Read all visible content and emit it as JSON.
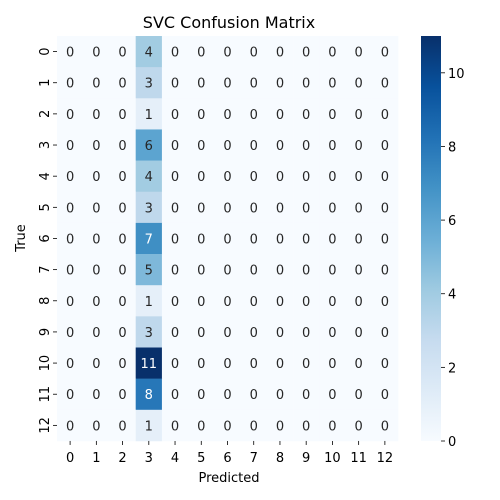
{
  "chart_data": {
    "type": "heatmap",
    "title": "SVC Confusion Matrix",
    "xlabel": "Predicted",
    "ylabel": "True",
    "x_categories": [
      "0",
      "1",
      "2",
      "3",
      "4",
      "5",
      "6",
      "7",
      "8",
      "9",
      "10",
      "11",
      "12"
    ],
    "y_categories": [
      "0",
      "1",
      "2",
      "3",
      "4",
      "5",
      "6",
      "7",
      "8",
      "9",
      "10",
      "11",
      "12"
    ],
    "values": [
      [
        0,
        0,
        0,
        4,
        0,
        0,
        0,
        0,
        0,
        0,
        0,
        0,
        0
      ],
      [
        0,
        0,
        0,
        3,
        0,
        0,
        0,
        0,
        0,
        0,
        0,
        0,
        0
      ],
      [
        0,
        0,
        0,
        1,
        0,
        0,
        0,
        0,
        0,
        0,
        0,
        0,
        0
      ],
      [
        0,
        0,
        0,
        6,
        0,
        0,
        0,
        0,
        0,
        0,
        0,
        0,
        0
      ],
      [
        0,
        0,
        0,
        4,
        0,
        0,
        0,
        0,
        0,
        0,
        0,
        0,
        0
      ],
      [
        0,
        0,
        0,
        3,
        0,
        0,
        0,
        0,
        0,
        0,
        0,
        0,
        0
      ],
      [
        0,
        0,
        0,
        7,
        0,
        0,
        0,
        0,
        0,
        0,
        0,
        0,
        0
      ],
      [
        0,
        0,
        0,
        5,
        0,
        0,
        0,
        0,
        0,
        0,
        0,
        0,
        0
      ],
      [
        0,
        0,
        0,
        1,
        0,
        0,
        0,
        0,
        0,
        0,
        0,
        0,
        0
      ],
      [
        0,
        0,
        0,
        3,
        0,
        0,
        0,
        0,
        0,
        0,
        0,
        0,
        0
      ],
      [
        0,
        0,
        0,
        11,
        0,
        0,
        0,
        0,
        0,
        0,
        0,
        0,
        0
      ],
      [
        0,
        0,
        0,
        8,
        0,
        0,
        0,
        0,
        0,
        0,
        0,
        0,
        0
      ],
      [
        0,
        0,
        0,
        1,
        0,
        0,
        0,
        0,
        0,
        0,
        0,
        0,
        0
      ]
    ],
    "colormap": "Blues",
    "colorbar": {
      "vmin": 0,
      "vmax": 11,
      "ticks": [
        "0",
        "2",
        "4",
        "6",
        "8",
        "10"
      ]
    },
    "annotations": true,
    "grid": false
  }
}
